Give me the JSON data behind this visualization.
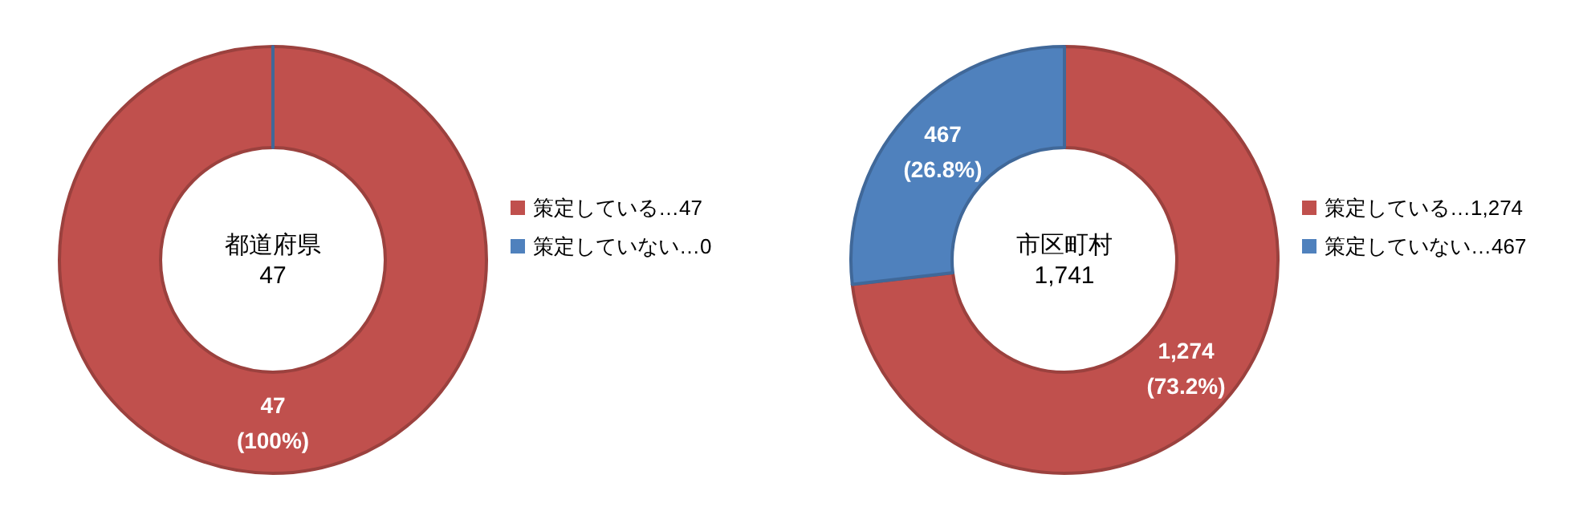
{
  "chart_data": [
    {
      "type": "donut",
      "categories": [
        "策定している…47",
        "策定していない…0"
      ],
      "values": [
        47,
        0
      ],
      "colors": [
        "#c0504d",
        "#4f81bd"
      ],
      "value_labels": [
        "47\n(100%)",
        null
      ],
      "annotations": [
        "都道府県",
        "47"
      ],
      "legend": "right"
    },
    {
      "type": "donut",
      "categories": [
        "策定している…1,274",
        "策定していない…467"
      ],
      "values": [
        1274,
        467
      ],
      "colors": [
        "#c0504d",
        "#4f81bd"
      ],
      "value_labels": [
        "1,274\n(73.2%)",
        "467\n(26.8%)"
      ],
      "annotations": [
        "市区町村",
        "1,741"
      ],
      "legend": "right"
    }
  ]
}
